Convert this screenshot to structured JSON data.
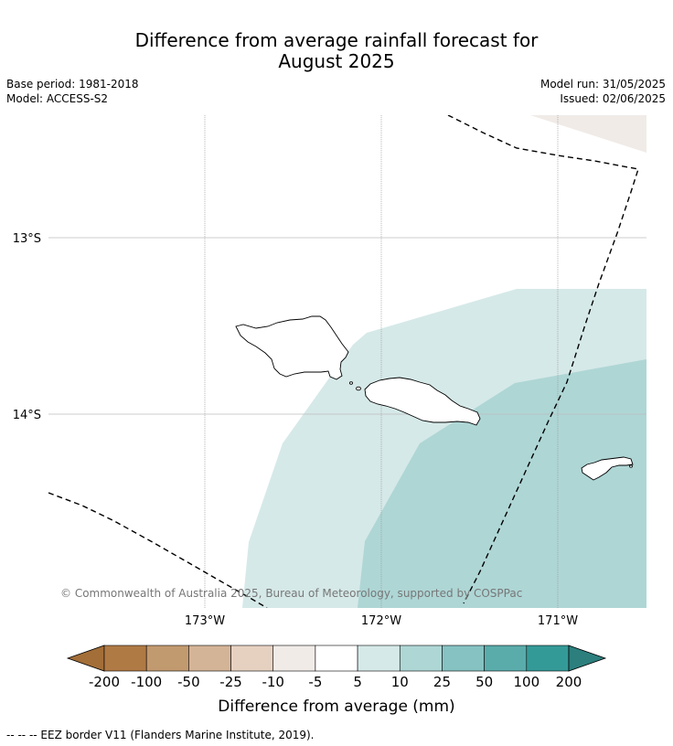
{
  "title": {
    "line1": "Difference from average rainfall forecast for",
    "line2": "August 2025"
  },
  "meta": {
    "base_period": "Base period: 1981-2018",
    "model": "Model: ACCESS-S2",
    "model_run": "Model run: 31/05/2025",
    "issued": "Issued: 02/06/2025"
  },
  "map": {
    "lat_labels": [
      "13°S",
      "14°S"
    ],
    "lon_labels": [
      "173°W",
      "172°W",
      "171°W"
    ],
    "copyright": "© Commonwealth of Australia 2025, Bureau of Meteorology, supported by COSPPac",
    "colors": {
      "band_5_10": "#d5e9e8",
      "band_10_25": "#aed6d5",
      "below_avg_light": "#f0ebe7",
      "eez_line": "#000000",
      "gridline": "#bbbbbb"
    }
  },
  "colorbar": {
    "ticks": [
      "-200",
      "-100",
      "-50",
      "-25",
      "-10",
      "-5",
      "5",
      "10",
      "25",
      "50",
      "100",
      "200"
    ],
    "colors": [
      "#a36e38",
      "#b07a45",
      "#c29a6f",
      "#d4b497",
      "#e6d1c1",
      "#f0ebe7",
      "#ffffff",
      "#d5e9e8",
      "#aed6d5",
      "#86c2c2",
      "#5aacab",
      "#349a98",
      "#2c7f7d"
    ],
    "label": "Difference from average (mm)"
  },
  "footer": "--  --  -- EEZ border V11 (Flanders Marine Institute, 2019)."
}
